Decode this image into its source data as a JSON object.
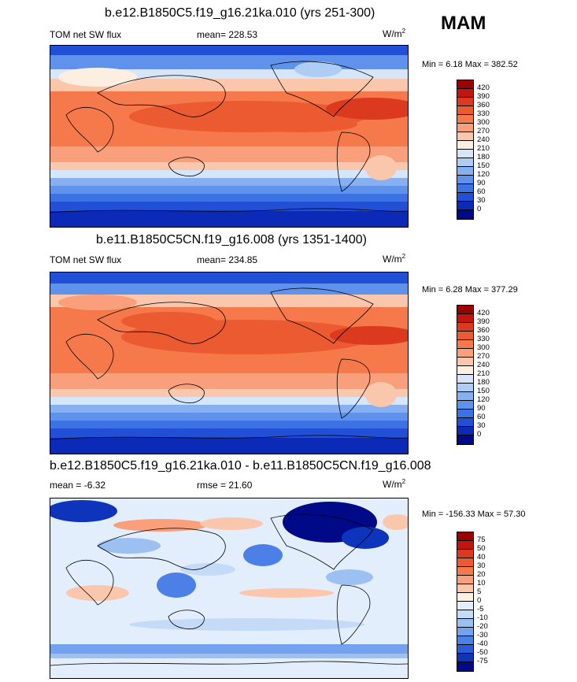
{
  "season": "MAM",
  "chart_data": [
    {
      "type": "heatmap",
      "title": "b.e12.B1850C5.f19_g16.21ka.010 (yrs 251-300)",
      "variable": "TOM net SW flux",
      "mean_label": "mean= 228.53",
      "units_base": "W/m",
      "units_exp": "2",
      "minmax_label": "Min =   6.18 Max = 382.52",
      "min": 6.18,
      "max": 382.52,
      "colorbar_levels": [
        "420",
        "390",
        "360",
        "330",
        "300",
        "270",
        "240",
        "210",
        "180",
        "150",
        "120",
        "90",
        "60",
        "30",
        "0"
      ],
      "colorbar_colors": [
        "#990000",
        "#c2150f",
        "#dc3a1f",
        "#ec5a32",
        "#f5794b",
        "#fa9f7c",
        "#fbc7ac",
        "#fdeee2",
        "#d6e6fa",
        "#adcdf5",
        "#86b0f0",
        "#5f92ec",
        "#3d72e4",
        "#2150d6",
        "#0b2ab8",
        "#000a88"
      ]
    },
    {
      "type": "heatmap",
      "title": "b.e11.B1850C5CN.f19_g16.008 (yrs 1351-1400)",
      "variable": "TOM net SW flux",
      "mean_label": "mean= 234.85",
      "units_base": "W/m",
      "units_exp": "2",
      "minmax_label": "Min =   6.28 Max = 377.29",
      "min": 6.28,
      "max": 377.29,
      "colorbar_levels": [
        "420",
        "390",
        "360",
        "330",
        "300",
        "270",
        "240",
        "210",
        "180",
        "150",
        "120",
        "90",
        "60",
        "30",
        "0"
      ],
      "colorbar_colors": [
        "#990000",
        "#c2150f",
        "#dc3a1f",
        "#ec5a32",
        "#f5794b",
        "#fa9f7c",
        "#fbc7ac",
        "#fdeee2",
        "#d6e6fa",
        "#adcdf5",
        "#86b0f0",
        "#5f92ec",
        "#3d72e4",
        "#2150d6",
        "#0b2ab8",
        "#000a88"
      ]
    },
    {
      "type": "heatmap",
      "title": "b.e12.B1850C5.f19_g16.21ka.010 - b.e11.B1850C5CN.f19_g16.008",
      "mean_label": "mean =  -6.32",
      "rmse_label": "rmse =  21.60",
      "units_base": "W/m",
      "units_exp": "2",
      "minmax_label": "Min = -156.33 Max =  57.30",
      "min": -156.33,
      "max": 57.3,
      "colorbar_levels": [
        "75",
        "50",
        "40",
        "30",
        "20",
        "10",
        "5",
        "0",
        "-5",
        "-10",
        "-20",
        "-30",
        "-40",
        "-50",
        "-75"
      ],
      "colorbar_colors": [
        "#990000",
        "#c2150f",
        "#dc3a1f",
        "#ec5a32",
        "#f5794b",
        "#fa9f7c",
        "#fbc7ac",
        "#fdeee2",
        "#e3eefc",
        "#c4dbf8",
        "#9cc0f2",
        "#74a2ee",
        "#4c80e6",
        "#2a5cd8",
        "#0f34bc",
        "#000a88"
      ]
    }
  ]
}
